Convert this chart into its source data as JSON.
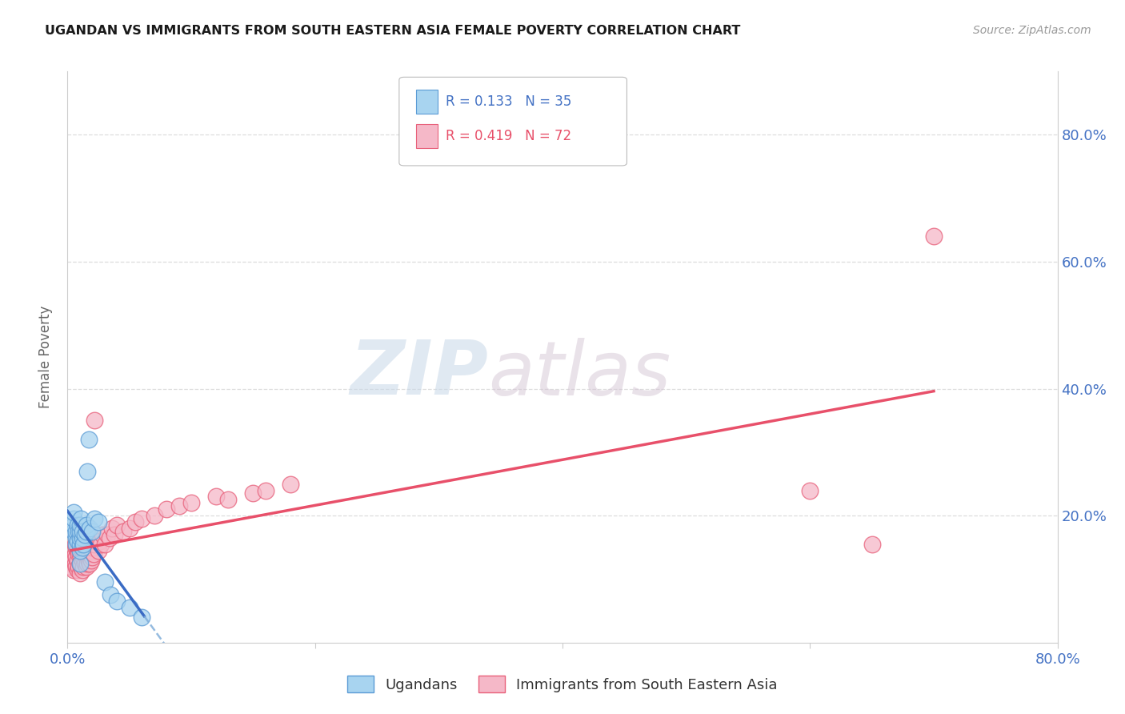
{
  "title": "UGANDAN VS IMMIGRANTS FROM SOUTH EASTERN ASIA FEMALE POVERTY CORRELATION CHART",
  "source": "Source: ZipAtlas.com",
  "ylabel": "Female Poverty",
  "xlim": [
    0.0,
    0.8
  ],
  "ylim": [
    0.0,
    0.9
  ],
  "xticks": [
    0.0,
    0.2,
    0.4,
    0.6,
    0.8
  ],
  "xticklabels": [
    "0.0%",
    "",
    "",
    "",
    "80.0%"
  ],
  "right_yticks": [
    0.2,
    0.4,
    0.6,
    0.8
  ],
  "right_yticklabels": [
    "20.0%",
    "40.0%",
    "60.0%",
    "80.0%"
  ],
  "ugandan_color": "#A8D4F0",
  "immigrant_color": "#F5B8C8",
  "ugandan_edge": "#5B9BD5",
  "immigrant_edge": "#E8607A",
  "line_blue": "#3A6BC4",
  "line_blue_dash": "#7BAAD8",
  "line_pink": "#E8506A",
  "legend_R1": "R = 0.133",
  "legend_N1": "N = 35",
  "legend_R2": "R = 0.419",
  "legend_N2": "N = 72",
  "ugandan_label": "Ugandans",
  "immigrant_label": "Immigrants from South Eastern Asia",
  "ugandan_x": [
    0.005,
    0.005,
    0.005,
    0.005,
    0.007,
    0.007,
    0.007,
    0.008,
    0.008,
    0.009,
    0.01,
    0.01,
    0.01,
    0.01,
    0.01,
    0.01,
    0.011,
    0.012,
    0.012,
    0.012,
    0.013,
    0.014,
    0.015,
    0.015,
    0.016,
    0.017,
    0.018,
    0.02,
    0.022,
    0.025,
    0.03,
    0.035,
    0.04,
    0.05,
    0.06
  ],
  "ugandan_y": [
    0.175,
    0.185,
    0.195,
    0.205,
    0.155,
    0.165,
    0.175,
    0.16,
    0.185,
    0.175,
    0.125,
    0.145,
    0.155,
    0.165,
    0.175,
    0.185,
    0.195,
    0.15,
    0.165,
    0.175,
    0.155,
    0.17,
    0.175,
    0.185,
    0.27,
    0.32,
    0.18,
    0.175,
    0.195,
    0.19,
    0.095,
    0.075,
    0.065,
    0.055,
    0.04
  ],
  "immigrant_x": [
    0.003,
    0.004,
    0.005,
    0.005,
    0.006,
    0.006,
    0.006,
    0.007,
    0.007,
    0.007,
    0.008,
    0.008,
    0.008,
    0.009,
    0.009,
    0.01,
    0.01,
    0.01,
    0.01,
    0.01,
    0.011,
    0.011,
    0.012,
    0.012,
    0.012,
    0.013,
    0.013,
    0.013,
    0.014,
    0.014,
    0.015,
    0.015,
    0.016,
    0.016,
    0.017,
    0.017,
    0.018,
    0.018,
    0.019,
    0.019,
    0.02,
    0.02,
    0.021,
    0.022,
    0.022,
    0.023,
    0.025,
    0.026,
    0.027,
    0.028,
    0.03,
    0.032,
    0.034,
    0.036,
    0.038,
    0.04,
    0.045,
    0.05,
    0.055,
    0.06,
    0.07,
    0.08,
    0.09,
    0.1,
    0.12,
    0.13,
    0.15,
    0.16,
    0.18,
    0.6,
    0.65,
    0.7
  ],
  "immigrant_y": [
    0.12,
    0.13,
    0.115,
    0.135,
    0.125,
    0.14,
    0.155,
    0.12,
    0.135,
    0.15,
    0.115,
    0.13,
    0.145,
    0.12,
    0.14,
    0.11,
    0.125,
    0.14,
    0.155,
    0.17,
    0.12,
    0.135,
    0.115,
    0.13,
    0.145,
    0.12,
    0.135,
    0.15,
    0.125,
    0.14,
    0.12,
    0.135,
    0.125,
    0.14,
    0.13,
    0.145,
    0.125,
    0.14,
    0.13,
    0.145,
    0.135,
    0.15,
    0.14,
    0.155,
    0.35,
    0.16,
    0.145,
    0.16,
    0.155,
    0.17,
    0.155,
    0.17,
    0.165,
    0.18,
    0.17,
    0.185,
    0.175,
    0.18,
    0.19,
    0.195,
    0.2,
    0.21,
    0.215,
    0.22,
    0.23,
    0.225,
    0.235,
    0.24,
    0.25,
    0.24,
    0.155,
    0.64
  ],
  "watermark_zip": "ZIP",
  "watermark_atlas": "atlas",
  "background_color": "#FFFFFF",
  "grid_color": "#DDDDDD"
}
